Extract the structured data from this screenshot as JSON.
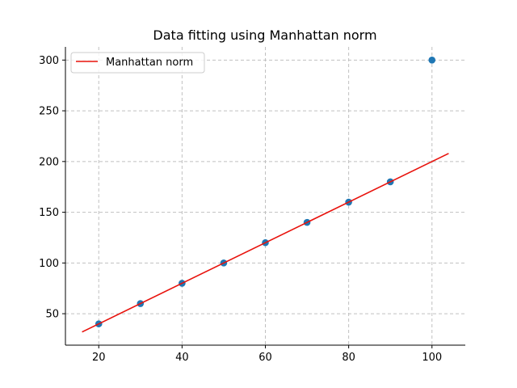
{
  "chart_data": {
    "type": "scatter",
    "title": "Data fitting using Manhattan norm",
    "xlabel": "",
    "ylabel": "",
    "xlim": [
      12,
      108
    ],
    "ylim": [
      19,
      313
    ],
    "x_ticks": [
      20,
      40,
      60,
      80,
      100
    ],
    "y_ticks": [
      50,
      100,
      150,
      200,
      250,
      300
    ],
    "grid": true,
    "legend_position": "upper-left",
    "series": [
      {
        "kind": "points",
        "x": [
          20,
          30,
          40,
          50,
          60,
          70,
          80,
          90,
          100
        ],
        "y": [
          40,
          60,
          80,
          100,
          120,
          140,
          160,
          180,
          300
        ],
        "color": "#1f77b4"
      },
      {
        "kind": "line",
        "name": "Manhattan norm",
        "x": [
          16,
          104
        ],
        "y": [
          32,
          208
        ],
        "color": "#e8120c"
      }
    ]
  }
}
